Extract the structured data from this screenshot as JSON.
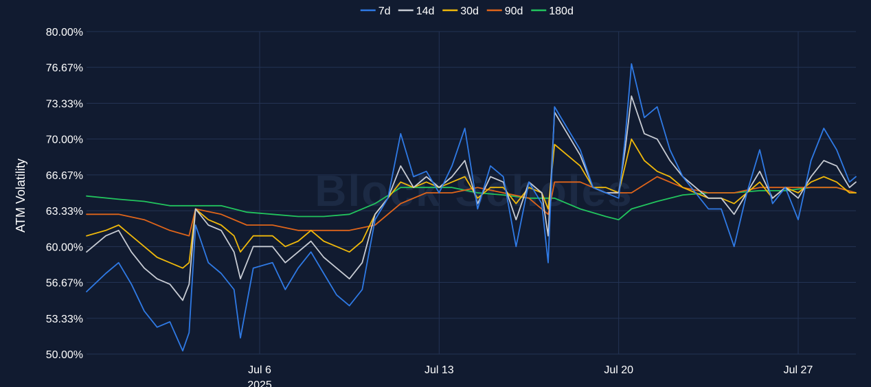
{
  "chart_data": {
    "type": "line",
    "title": "",
    "ylabel": "ATM Volatility",
    "xlabel": "",
    "ylim": [
      50.0,
      80.0
    ],
    "y_ticks": [
      50.0,
      53.33,
      56.67,
      60.0,
      63.33,
      66.67,
      70.0,
      73.33,
      76.67,
      80.0
    ],
    "y_tick_labels": [
      "50.00%",
      "53.33%",
      "56.67%",
      "60.00%",
      "63.33%",
      "66.67%",
      "70.00%",
      "73.33%",
      "76.67%",
      "80.00%"
    ],
    "x_ticks": [
      {
        "date": "2025-07-06",
        "label": "Jul 6",
        "sublabel": "2025"
      },
      {
        "date": "2025-07-13",
        "label": "Jul 13",
        "sublabel": ""
      },
      {
        "date": "2025-07-20",
        "label": "Jul 20",
        "sublabel": ""
      },
      {
        "date": "2025-07-27",
        "label": "Jul 27",
        "sublabel": ""
      }
    ],
    "xlim": [
      "2025-06-29T06:00",
      "2025-07-29T06:00"
    ],
    "grid": true,
    "legend_position": "top-center",
    "watermark": "Block Scholes",
    "series": [
      {
        "name": "7d",
        "color": "#2f7ae5",
        "x": [
          "2025-06-29T06:00",
          "2025-06-30T00:00",
          "2025-06-30T12:00",
          "2025-07-01T00:00",
          "2025-07-01T12:00",
          "2025-07-02T00:00",
          "2025-07-02T12:00",
          "2025-07-03T00:00",
          "2025-07-03T06:00",
          "2025-07-03T12:00",
          "2025-07-04T00:00",
          "2025-07-04T12:00",
          "2025-07-05T00:00",
          "2025-07-05T06:00",
          "2025-07-05T18:00",
          "2025-07-06T12:00",
          "2025-07-07T00:00",
          "2025-07-07T12:00",
          "2025-07-08T00:00",
          "2025-07-08T12:00",
          "2025-07-09T00:00",
          "2025-07-09T12:00",
          "2025-07-10T00:00",
          "2025-07-10T12:00",
          "2025-07-11T00:00",
          "2025-07-11T12:00",
          "2025-07-12T00:00",
          "2025-07-12T12:00",
          "2025-07-13T00:00",
          "2025-07-13T12:00",
          "2025-07-14T00:00",
          "2025-07-14T12:00",
          "2025-07-15T00:00",
          "2025-07-15T12:00",
          "2025-07-16T00:00",
          "2025-07-16T12:00",
          "2025-07-17T00:00",
          "2025-07-17T06:00",
          "2025-07-17T12:00",
          "2025-07-18T00:00",
          "2025-07-18T12:00",
          "2025-07-19T00:00",
          "2025-07-19T12:00",
          "2025-07-20T00:00",
          "2025-07-20T06:00",
          "2025-07-20T12:00",
          "2025-07-21T00:00",
          "2025-07-21T12:00",
          "2025-07-22T00:00",
          "2025-07-22T12:00",
          "2025-07-23T00:00",
          "2025-07-23T12:00",
          "2025-07-24T00:00",
          "2025-07-24T12:00",
          "2025-07-25T00:00",
          "2025-07-25T12:00",
          "2025-07-26T00:00",
          "2025-07-26T12:00",
          "2025-07-27T00:00",
          "2025-07-27T12:00",
          "2025-07-28T00:00",
          "2025-07-28T12:00",
          "2025-07-29T00:00",
          "2025-07-29T06:00"
        ],
        "y": [
          55.8,
          57.5,
          58.5,
          56.5,
          54.0,
          52.5,
          53.0,
          50.3,
          52.0,
          62.0,
          58.5,
          57.5,
          56.0,
          51.5,
          58.0,
          58.5,
          56.0,
          58.0,
          59.5,
          57.5,
          55.5,
          54.5,
          56.0,
          62.5,
          64.5,
          70.5,
          66.5,
          67.0,
          65.0,
          67.5,
          71.0,
          63.5,
          67.5,
          66.5,
          60.0,
          66.0,
          64.0,
          58.5,
          73.0,
          71.0,
          69.0,
          65.5,
          65.0,
          64.5,
          70.0,
          77.0,
          72.0,
          73.0,
          69.0,
          66.5,
          65.0,
          63.5,
          63.5,
          60.0,
          65.0,
          69.0,
          64.0,
          65.5,
          62.5,
          68.0,
          71.0,
          69.0,
          66.0,
          66.5
        ]
      },
      {
        "name": "14d",
        "color": "#c8ccd4",
        "x": [
          "2025-06-29T06:00",
          "2025-06-30T00:00",
          "2025-06-30T12:00",
          "2025-07-01T00:00",
          "2025-07-01T12:00",
          "2025-07-02T00:00",
          "2025-07-02T12:00",
          "2025-07-03T00:00",
          "2025-07-03T06:00",
          "2025-07-03T12:00",
          "2025-07-04T00:00",
          "2025-07-04T12:00",
          "2025-07-05T00:00",
          "2025-07-05T06:00",
          "2025-07-05T18:00",
          "2025-07-06T12:00",
          "2025-07-07T00:00",
          "2025-07-07T12:00",
          "2025-07-08T00:00",
          "2025-07-08T12:00",
          "2025-07-09T00:00",
          "2025-07-09T12:00",
          "2025-07-10T00:00",
          "2025-07-10T12:00",
          "2025-07-11T00:00",
          "2025-07-11T12:00",
          "2025-07-12T00:00",
          "2025-07-12T12:00",
          "2025-07-13T00:00",
          "2025-07-13T12:00",
          "2025-07-14T00:00",
          "2025-07-14T12:00",
          "2025-07-15T00:00",
          "2025-07-15T12:00",
          "2025-07-16T00:00",
          "2025-07-16T12:00",
          "2025-07-17T00:00",
          "2025-07-17T06:00",
          "2025-07-17T12:00",
          "2025-07-18T00:00",
          "2025-07-18T12:00",
          "2025-07-19T00:00",
          "2025-07-19T12:00",
          "2025-07-20T00:00",
          "2025-07-20T06:00",
          "2025-07-20T12:00",
          "2025-07-21T00:00",
          "2025-07-21T12:00",
          "2025-07-22T00:00",
          "2025-07-22T12:00",
          "2025-07-23T00:00",
          "2025-07-23T12:00",
          "2025-07-24T00:00",
          "2025-07-24T12:00",
          "2025-07-25T00:00",
          "2025-07-25T12:00",
          "2025-07-26T00:00",
          "2025-07-26T12:00",
          "2025-07-27T00:00",
          "2025-07-27T12:00",
          "2025-07-28T00:00",
          "2025-07-28T12:00",
          "2025-07-29T00:00",
          "2025-07-29T06:00"
        ],
        "y": [
          59.5,
          61.0,
          61.5,
          59.5,
          58.0,
          57.0,
          56.5,
          55.0,
          56.5,
          63.5,
          62.0,
          61.5,
          59.5,
          57.0,
          60.0,
          60.0,
          58.5,
          59.5,
          60.5,
          59.0,
          58.0,
          57.0,
          58.5,
          63.0,
          64.5,
          67.5,
          65.5,
          66.5,
          65.5,
          66.5,
          68.0,
          64.0,
          66.5,
          66.0,
          62.5,
          66.0,
          65.0,
          61.0,
          72.5,
          70.5,
          68.5,
          65.5,
          65.0,
          65.0,
          69.0,
          74.0,
          70.5,
          70.0,
          68.0,
          66.5,
          65.5,
          64.5,
          64.5,
          63.0,
          65.0,
          67.0,
          64.5,
          65.5,
          64.5,
          66.5,
          68.0,
          67.5,
          65.5,
          66.0
        ]
      },
      {
        "name": "30d",
        "color": "#f0b90b",
        "x": [
          "2025-06-29T06:00",
          "2025-06-30T00:00",
          "2025-06-30T12:00",
          "2025-07-01T00:00",
          "2025-07-01T12:00",
          "2025-07-02T00:00",
          "2025-07-02T12:00",
          "2025-07-03T00:00",
          "2025-07-03T06:00",
          "2025-07-03T12:00",
          "2025-07-04T00:00",
          "2025-07-04T12:00",
          "2025-07-05T00:00",
          "2025-07-05T06:00",
          "2025-07-05T18:00",
          "2025-07-06T12:00",
          "2025-07-07T00:00",
          "2025-07-07T12:00",
          "2025-07-08T00:00",
          "2025-07-08T12:00",
          "2025-07-09T00:00",
          "2025-07-09T12:00",
          "2025-07-10T00:00",
          "2025-07-10T12:00",
          "2025-07-11T00:00",
          "2025-07-11T12:00",
          "2025-07-12T00:00",
          "2025-07-12T12:00",
          "2025-07-13T00:00",
          "2025-07-13T12:00",
          "2025-07-14T00:00",
          "2025-07-14T12:00",
          "2025-07-15T00:00",
          "2025-07-15T12:00",
          "2025-07-16T00:00",
          "2025-07-16T12:00",
          "2025-07-17T00:00",
          "2025-07-17T06:00",
          "2025-07-17T12:00",
          "2025-07-18T00:00",
          "2025-07-18T12:00",
          "2025-07-19T00:00",
          "2025-07-19T12:00",
          "2025-07-20T00:00",
          "2025-07-20T06:00",
          "2025-07-20T12:00",
          "2025-07-21T00:00",
          "2025-07-21T12:00",
          "2025-07-22T00:00",
          "2025-07-22T12:00",
          "2025-07-23T00:00",
          "2025-07-23T12:00",
          "2025-07-24T00:00",
          "2025-07-24T12:00",
          "2025-07-25T00:00",
          "2025-07-25T12:00",
          "2025-07-26T00:00",
          "2025-07-26T12:00",
          "2025-07-27T00:00",
          "2025-07-27T12:00",
          "2025-07-28T00:00",
          "2025-07-28T12:00",
          "2025-07-29T00:00",
          "2025-07-29T06:00"
        ],
        "y": [
          61.0,
          61.5,
          62.0,
          61.0,
          60.0,
          59.0,
          58.5,
          58.0,
          58.5,
          63.5,
          62.5,
          62.0,
          61.0,
          59.5,
          61.0,
          61.0,
          60.0,
          60.5,
          61.5,
          60.5,
          60.0,
          59.5,
          60.5,
          63.0,
          64.5,
          66.0,
          65.5,
          66.0,
          65.5,
          66.0,
          66.5,
          64.5,
          65.5,
          65.5,
          64.0,
          65.5,
          65.0,
          63.5,
          69.5,
          68.5,
          67.5,
          65.5,
          65.5,
          65.0,
          67.5,
          70.0,
          68.0,
          67.0,
          66.5,
          65.5,
          65.0,
          64.5,
          64.5,
          64.0,
          65.0,
          66.0,
          64.5,
          65.5,
          65.0,
          66.0,
          66.5,
          66.0,
          65.0,
          65.0
        ]
      },
      {
        "name": "90d",
        "color": "#e0651a",
        "x": [
          "2025-06-29T06:00",
          "2025-06-30T12:00",
          "2025-07-01T12:00",
          "2025-07-02T12:00",
          "2025-07-03T06:00",
          "2025-07-03T12:00",
          "2025-07-04T12:00",
          "2025-07-05T12:00",
          "2025-07-06T12:00",
          "2025-07-07T12:00",
          "2025-07-08T12:00",
          "2025-07-09T12:00",
          "2025-07-10T12:00",
          "2025-07-11T12:00",
          "2025-07-12T12:00",
          "2025-07-13T12:00",
          "2025-07-14T12:00",
          "2025-07-15T12:00",
          "2025-07-16T12:00",
          "2025-07-17T06:00",
          "2025-07-17T12:00",
          "2025-07-18T12:00",
          "2025-07-19T12:00",
          "2025-07-20T12:00",
          "2025-07-21T12:00",
          "2025-07-22T12:00",
          "2025-07-23T12:00",
          "2025-07-24T12:00",
          "2025-07-25T12:00",
          "2025-07-26T12:00",
          "2025-07-27T12:00",
          "2025-07-28T12:00",
          "2025-07-29T06:00"
        ],
        "y": [
          63.0,
          63.0,
          62.5,
          61.5,
          61.0,
          63.5,
          63.0,
          62.0,
          62.0,
          61.5,
          61.5,
          61.5,
          62.0,
          64.0,
          65.0,
          65.0,
          65.5,
          65.0,
          64.5,
          63.0,
          66.0,
          66.0,
          65.0,
          65.0,
          66.5,
          65.5,
          65.0,
          65.0,
          65.5,
          65.5,
          65.5,
          65.5,
          65.0
        ]
      },
      {
        "name": "180d",
        "color": "#22c55e",
        "x": [
          "2025-06-29T06:00",
          "2025-06-30T12:00",
          "2025-07-01T12:00",
          "2025-07-02T12:00",
          "2025-07-03T12:00",
          "2025-07-04T12:00",
          "2025-07-05T12:00",
          "2025-07-06T12:00",
          "2025-07-07T12:00",
          "2025-07-08T12:00",
          "2025-07-09T12:00",
          "2025-07-10T12:00",
          "2025-07-11T12:00",
          "2025-07-12T12:00",
          "2025-07-13T12:00",
          "2025-07-14T12:00",
          "2025-07-15T12:00",
          "2025-07-16T12:00",
          "2025-07-17T12:00",
          "2025-07-18T12:00",
          "2025-07-19T12:00",
          "2025-07-20T00:00",
          "2025-07-20T12:00",
          "2025-07-21T12:00",
          "2025-07-22T12:00",
          "2025-07-23T12:00",
          "2025-07-24T12:00",
          "2025-07-25T12:00",
          "2025-07-26T12:00",
          "2025-07-27T12:00",
          "2025-07-28T12:00",
          "2025-07-29T06:00"
        ],
        "y": [
          64.7,
          64.4,
          64.2,
          63.8,
          63.8,
          63.8,
          63.2,
          63.0,
          62.8,
          62.8,
          63.0,
          64.0,
          65.5,
          65.5,
          65.5,
          65.0,
          64.8,
          64.5,
          64.5,
          63.5,
          62.8,
          62.5,
          63.5,
          64.2,
          64.8,
          65.0,
          65.0,
          65.2,
          65.2,
          65.5,
          65.5,
          65.0
        ]
      }
    ]
  }
}
